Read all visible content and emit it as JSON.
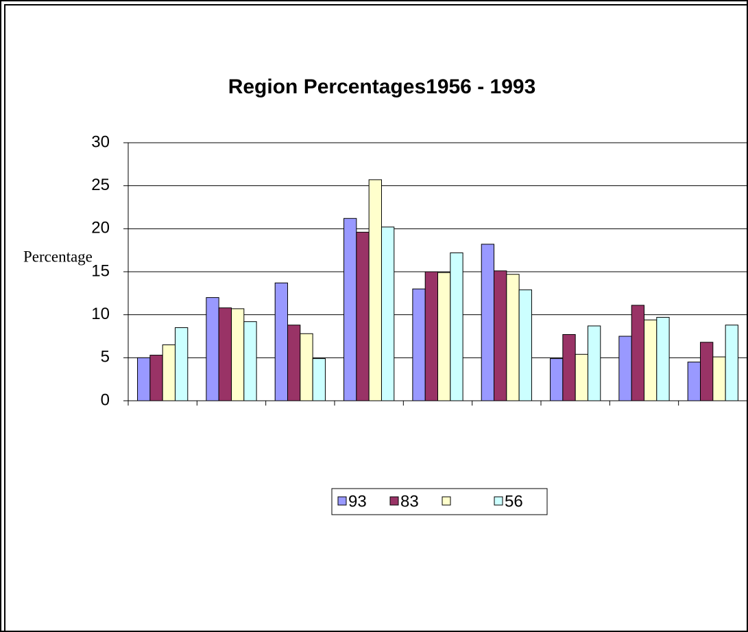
{
  "chart_data": {
    "type": "bar",
    "title": "Region Percentages1956 - 1993",
    "y_label": "Percentage",
    "categories": [
      null,
      null,
      null,
      null,
      null,
      null,
      null,
      null,
      null
    ],
    "series": [
      {
        "name": "93",
        "color": "#9999ff",
        "values": [
          5.0,
          12.0,
          13.7,
          21.2,
          13.0,
          18.2,
          4.9,
          7.5,
          4.5
        ]
      },
      {
        "name": "83",
        "color": "#993366",
        "values": [
          5.3,
          10.8,
          8.8,
          19.6,
          15.0,
          15.1,
          7.7,
          11.1,
          6.8
        ]
      },
      {
        "name": null,
        "color": "#ffffcc",
        "values": [
          6.5,
          10.7,
          7.8,
          25.7,
          14.9,
          14.7,
          5.4,
          9.4,
          5.1
        ]
      },
      {
        "name": "56",
        "color": "#ccffff",
        "values": [
          8.5,
          9.2,
          4.9,
          20.2,
          17.2,
          12.9,
          8.7,
          9.7,
          8.8
        ]
      }
    ],
    "ylim": [
      0,
      30
    ],
    "yticks": [
      0,
      5,
      10,
      15,
      20,
      25,
      30
    ],
    "grid": true,
    "legend": "bottom"
  }
}
